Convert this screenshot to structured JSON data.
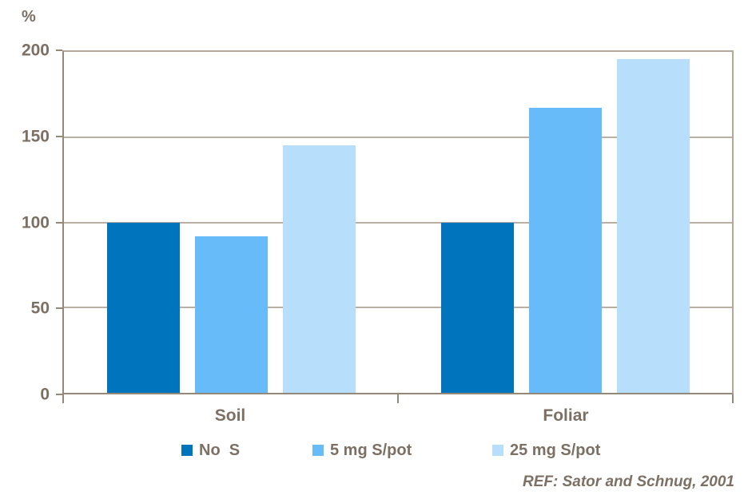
{
  "chart_data": {
    "type": "bar",
    "title": "",
    "ylabel": "%",
    "xlabel": "",
    "ylim": [
      0,
      200
    ],
    "yticks": [
      0,
      50,
      100,
      150,
      200
    ],
    "grid": true,
    "legend_position": "bottom",
    "categories": [
      "Soil",
      "Foliar"
    ],
    "series": [
      {
        "name": "No  S",
        "color": "#0074BD",
        "values": [
          100,
          100
        ]
      },
      {
        "name": "5 mg S/pot",
        "color": "#66BBF8",
        "values": [
          92,
          167
        ]
      },
      {
        "name": "25 mg S/pot",
        "color": "#B7DEFB",
        "values": [
          145,
          196
        ]
      }
    ]
  },
  "reference": "REF: Sator and Schnug, 2001",
  "colors": {
    "text": "#7C7064",
    "gridline": "#B9AFA3",
    "axis": "#948878",
    "border": "#B2A89C"
  }
}
